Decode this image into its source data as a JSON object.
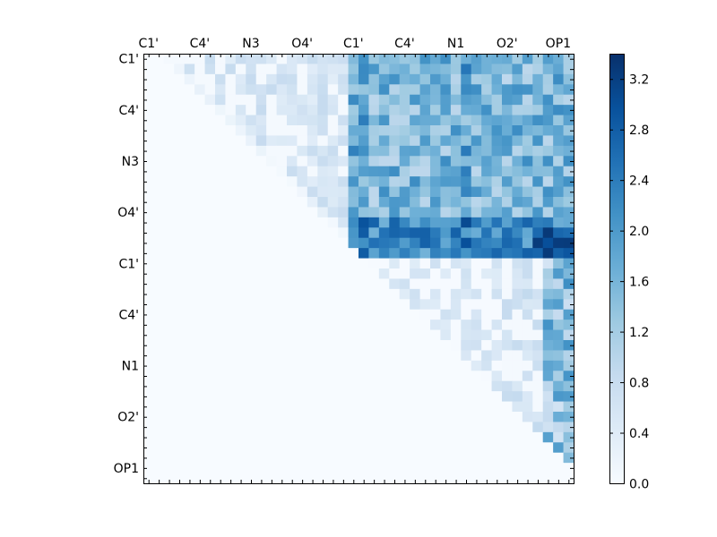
{
  "chart_data": {
    "type": "heatmap",
    "matrix_shape": "upper-triangular",
    "n": 42,
    "colormap": "Blues",
    "clim": [
      0.0,
      3.4
    ],
    "x_tick_labels": [
      "C1'",
      "C4'",
      "N3",
      "O4'",
      "C1'",
      "C4'",
      "N1",
      "O2'",
      "OP1"
    ],
    "y_tick_labels": [
      "C1'",
      "C4'",
      "N3",
      "O4'",
      "C1'",
      "C4'",
      "N1",
      "O2'",
      "OP1"
    ],
    "colorbar_ticks": [
      "0.0",
      "0.4",
      "0.8",
      "1.2",
      "1.6",
      "2.0",
      "2.4",
      "2.8",
      "3.2"
    ],
    "colorbar_tick_values": [
      0.0,
      0.4,
      0.8,
      1.2,
      1.6,
      2.0,
      2.4,
      2.8,
      3.2
    ],
    "approximate_values": {
      "block_rows_0_20_cols_0_20": "0.05-0.9 (light), zero on and just above diagonal",
      "block_rows_0_20_cols_20_42": "1.0-2.7 (medium to dark blue)",
      "rows_16_20_cols_20_42": "1.6-3.3 (darkest region, max ~3.3 near col 39-41)",
      "rows_20_42_cols_20_42": "mostly 0.0-0.6, some 1.0-2.0 in right-most columns"
    }
  }
}
